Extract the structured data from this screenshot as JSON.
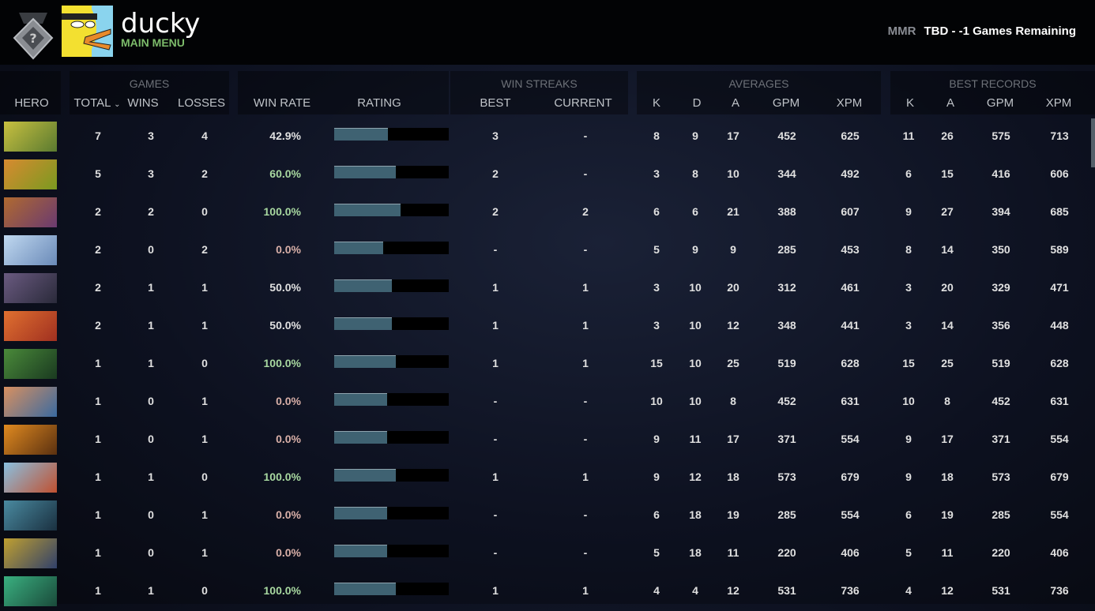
{
  "header": {
    "username": "ducky",
    "subtitle": "MAIN MENU",
    "mmr_label": "MMR",
    "mmr_value": "TBD - -1 Games Remaining"
  },
  "groups": {
    "games": "GAMES",
    "win_streaks": "WIN STREAKS",
    "averages": "AVERAGES",
    "best_records": "BEST RECORDS"
  },
  "columns": {
    "hero": "HERO",
    "total": "TOTAL",
    "wins": "WINS",
    "losses": "LOSSES",
    "win_rate": "WIN RATE",
    "rating": "RATING",
    "best": "BEST",
    "current": "CURRENT",
    "k": "K",
    "d": "D",
    "a": "A",
    "gpm": "GPM",
    "xpm": "XPM",
    "bk": "K",
    "ba": "A",
    "bgpm": "GPM",
    "bxpm": "XPM"
  },
  "colors": {
    "win_good": "#a8d8a0",
    "win_bad": "#d9b0a8",
    "win_neutral": "#e0e0e0",
    "rating_fill": "#3f6272"
  },
  "rows": [
    {
      "total": "7",
      "wins": "3",
      "losses": "4",
      "win_rate": "42.9%",
      "rating": 0.47,
      "best": "3",
      "current": "-",
      "k": "8",
      "d": "9",
      "a": "17",
      "gpm": "452",
      "xpm": "625",
      "bk": "11",
      "ba": "26",
      "bgpm": "575",
      "bxpm": "713",
      "c1": "#c8c040",
      "c2": "#5a7a30"
    },
    {
      "total": "5",
      "wins": "3",
      "losses": "2",
      "win_rate": "60.0%",
      "rating": 0.54,
      "best": "2",
      "current": "-",
      "k": "3",
      "d": "8",
      "a": "10",
      "gpm": "344",
      "xpm": "492",
      "bk": "6",
      "ba": "15",
      "bgpm": "416",
      "bxpm": "606",
      "c1": "#d88a30",
      "c2": "#7a9a20"
    },
    {
      "total": "2",
      "wins": "2",
      "losses": "0",
      "win_rate": "100.0%",
      "rating": 0.58,
      "best": "2",
      "current": "2",
      "k": "6",
      "d": "6",
      "a": "21",
      "gpm": "388",
      "xpm": "607",
      "bk": "9",
      "ba": "27",
      "bgpm": "394",
      "bxpm": "685",
      "c1": "#b06a30",
      "c2": "#6a3a70"
    },
    {
      "total": "2",
      "wins": "0",
      "losses": "2",
      "win_rate": "0.0%",
      "rating": 0.43,
      "best": "-",
      "current": "-",
      "k": "5",
      "d": "9",
      "a": "9",
      "gpm": "285",
      "xpm": "453",
      "bk": "8",
      "ba": "14",
      "bgpm": "350",
      "bxpm": "589",
      "c1": "#c0d8f0",
      "c2": "#6a8ab8"
    },
    {
      "total": "2",
      "wins": "1",
      "losses": "1",
      "win_rate": "50.0%",
      "rating": 0.5,
      "best": "1",
      "current": "1",
      "k": "3",
      "d": "10",
      "a": "20",
      "gpm": "312",
      "xpm": "461",
      "bk": "3",
      "ba": "20",
      "bgpm": "329",
      "bxpm": "471",
      "c1": "#6a5a80",
      "c2": "#2a2a3a"
    },
    {
      "total": "2",
      "wins": "1",
      "losses": "1",
      "win_rate": "50.0%",
      "rating": 0.5,
      "best": "1",
      "current": "1",
      "k": "3",
      "d": "10",
      "a": "12",
      "gpm": "348",
      "xpm": "441",
      "bk": "3",
      "ba": "14",
      "bgpm": "356",
      "bxpm": "448",
      "c1": "#e07030",
      "c2": "#a03020"
    },
    {
      "total": "1",
      "wins": "1",
      "losses": "0",
      "win_rate": "100.0%",
      "rating": 0.54,
      "best": "1",
      "current": "1",
      "k": "15",
      "d": "10",
      "a": "25",
      "gpm": "519",
      "xpm": "628",
      "bk": "15",
      "ba": "25",
      "bgpm": "519",
      "bxpm": "628",
      "c1": "#4a8a3a",
      "c2": "#1a3a20"
    },
    {
      "total": "1",
      "wins": "0",
      "losses": "1",
      "win_rate": "0.0%",
      "rating": 0.46,
      "best": "-",
      "current": "-",
      "k": "10",
      "d": "10",
      "a": "8",
      "gpm": "452",
      "xpm": "631",
      "bk": "10",
      "ba": "8",
      "bgpm": "452",
      "bxpm": "631",
      "c1": "#d89060",
      "c2": "#3a6aa0"
    },
    {
      "total": "1",
      "wins": "0",
      "losses": "1",
      "win_rate": "0.0%",
      "rating": 0.46,
      "best": "-",
      "current": "-",
      "k": "9",
      "d": "11",
      "a": "17",
      "gpm": "371",
      "xpm": "554",
      "bk": "9",
      "ba": "17",
      "bgpm": "371",
      "bxpm": "554",
      "c1": "#e08a20",
      "c2": "#5a3010"
    },
    {
      "total": "1",
      "wins": "1",
      "losses": "0",
      "win_rate": "100.0%",
      "rating": 0.54,
      "best": "1",
      "current": "1",
      "k": "9",
      "d": "12",
      "a": "18",
      "gpm": "573",
      "xpm": "679",
      "bk": "9",
      "ba": "18",
      "bgpm": "573",
      "bxpm": "679",
      "c1": "#8ac0e0",
      "c2": "#c05030"
    },
    {
      "total": "1",
      "wins": "0",
      "losses": "1",
      "win_rate": "0.0%",
      "rating": 0.46,
      "best": "-",
      "current": "-",
      "k": "6",
      "d": "18",
      "a": "19",
      "gpm": "285",
      "xpm": "554",
      "bk": "6",
      "ba": "19",
      "bgpm": "285",
      "bxpm": "554",
      "c1": "#4a8aa0",
      "c2": "#1a3040"
    },
    {
      "total": "1",
      "wins": "0",
      "losses": "1",
      "win_rate": "0.0%",
      "rating": 0.46,
      "best": "-",
      "current": "-",
      "k": "5",
      "d": "18",
      "a": "11",
      "gpm": "220",
      "xpm": "406",
      "bk": "5",
      "ba": "11",
      "bgpm": "220",
      "bxpm": "406",
      "c1": "#c0a030",
      "c2": "#30406a"
    },
    {
      "total": "1",
      "wins": "1",
      "losses": "0",
      "win_rate": "100.0%",
      "rating": 0.54,
      "best": "1",
      "current": "1",
      "k": "4",
      "d": "4",
      "a": "12",
      "gpm": "531",
      "xpm": "736",
      "bk": "4",
      "ba": "12",
      "bgpm": "531",
      "bxpm": "736",
      "c1": "#3ab080",
      "c2": "#1a4a3a"
    }
  ]
}
